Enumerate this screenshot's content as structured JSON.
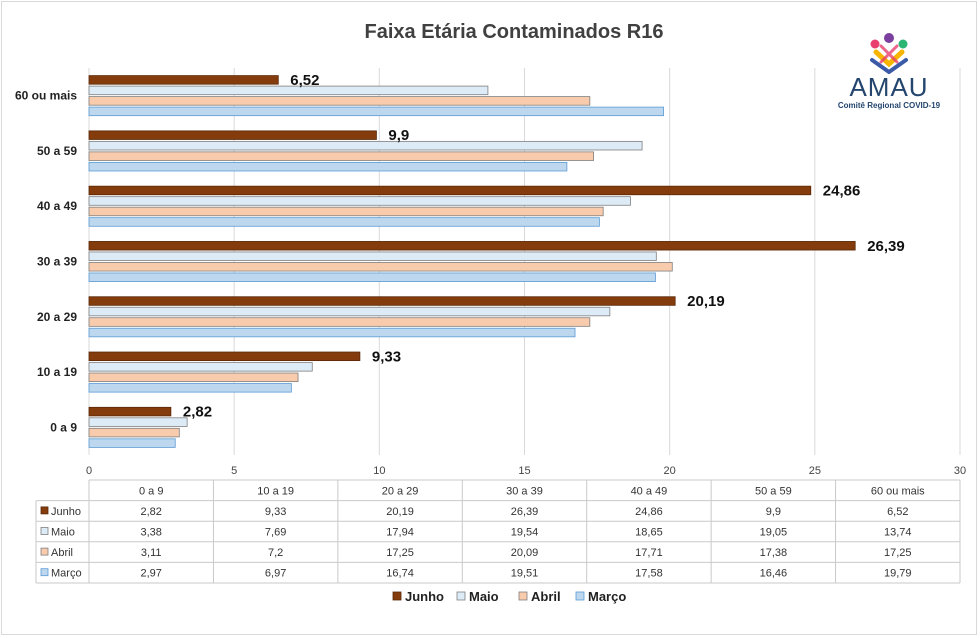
{
  "logo": {
    "name": "AMAU",
    "subtitle": "Comitê Regional COVID-19",
    "colors": [
      "#e83f6f",
      "#f7b500",
      "#2bb673",
      "#3b5ba9",
      "#7b3fa0"
    ]
  },
  "chart_data": {
    "type": "bar",
    "orientation": "horizontal",
    "title": "Faixa Etária Contaminados R16",
    "categories": [
      "0 a 9",
      "10 a 19",
      "20 a 29",
      "30 a 39",
      "40 a 49",
      "50 a 59",
      "60 ou mais"
    ],
    "category_labels": [
      "0 a 9",
      "10 a 19",
      "20 a 29",
      "30 a 39",
      "40 a 49",
      "50 a 59",
      "60 ou mais"
    ],
    "series": [
      {
        "name": "Junho",
        "values": [
          2.82,
          9.33,
          20.19,
          26.39,
          24.86,
          9.9,
          6.52
        ],
        "labels": [
          "2,82",
          "9,33",
          "20,19",
          "26,39",
          "24,86",
          "9,9",
          "6,52"
        ],
        "color": "#843c0c",
        "stroke": "#5a2808"
      },
      {
        "name": "Maio",
        "values": [
          3.38,
          7.69,
          17.94,
          19.54,
          18.65,
          19.05,
          13.74
        ],
        "labels": [
          "3,38",
          "7,69",
          "17,94",
          "19,54",
          "18,65",
          "19,05",
          "13,74"
        ],
        "color": "#ddebf7",
        "stroke": "#7f7f7f"
      },
      {
        "name": "Abril",
        "values": [
          3.11,
          7.2,
          17.25,
          20.09,
          17.71,
          17.38,
          17.25
        ],
        "labels": [
          "3,11",
          "7,2",
          "17,25",
          "20,09",
          "17,71",
          "17,38",
          "17,25"
        ],
        "color": "#f8cbad",
        "stroke": "#7f7f7f"
      },
      {
        "name": "Março",
        "values": [
          2.97,
          6.97,
          16.74,
          19.51,
          17.58,
          16.46,
          19.79
        ],
        "labels": [
          "2,97",
          "6,97",
          "16,74",
          "19,51",
          "17,58",
          "16,46",
          "19,79"
        ],
        "color": "#bdd7ee",
        "stroke": "#5b9bd5"
      }
    ],
    "xlim": [
      0,
      30
    ],
    "xticks": [
      0,
      5,
      10,
      15,
      20,
      25,
      30
    ],
    "grid": "vertical",
    "data_labels_series": "Junho",
    "legend_position": "bottom",
    "data_table": true,
    "table_header_color": "#c9c9c9"
  }
}
